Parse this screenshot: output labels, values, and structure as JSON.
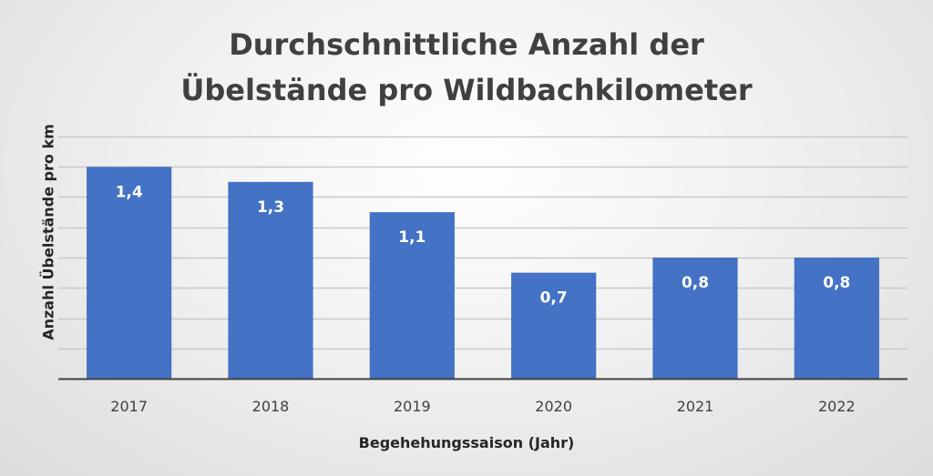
{
  "chart_data": {
    "type": "bar",
    "title_lines": [
      "Durchschnittliche Anzahl der",
      "Übelstände pro Wildbachkilometer"
    ],
    "xlabel": "Begehehungssaison (Jahr)",
    "ylabel": "Anzahl Übelstände pro km",
    "categories": [
      "2017",
      "2018",
      "2019",
      "2020",
      "2021",
      "2022"
    ],
    "values": [
      1.4,
      1.3,
      1.1,
      0.7,
      0.8,
      0.8
    ],
    "data_labels": [
      "1,4",
      "1,3",
      "1,1",
      "0,7",
      "0,8",
      "0,8"
    ],
    "ylim": [
      0,
      1.6
    ],
    "ytick_step": 0.2,
    "grid": true,
    "bar_color": "#4472c4",
    "label_color": "#ffffff",
    "gridline_color": "#c9c9c9",
    "axis_color": "#404040"
  }
}
